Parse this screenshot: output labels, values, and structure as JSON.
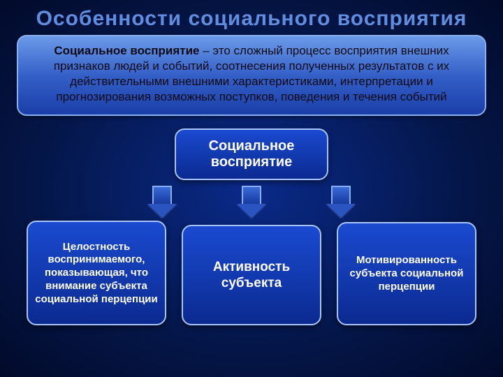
{
  "title": {
    "text": "Особенности социального восприятия",
    "fontsize": 30,
    "color": "#5f8de0"
  },
  "definition": {
    "bold_lead": "Социальное восприятие",
    "rest": " – это сложный процесс восприятия внешних признаков людей и событий, соотнесения полученных результатов с их действительными внешними характеристиками, интерпретации и прогнозирования возможных поступков, поведения и течения событий",
    "fontsize": 17,
    "text_color": "#0a0a14",
    "bg_gradient": [
      "#6a9ae8",
      "#3560c8",
      "#1a3ea8"
    ],
    "border_color": "#8ab0f0"
  },
  "center_node": {
    "label": "Социальное восприятие",
    "fontsize": 20,
    "text_color": "#ffffff",
    "bg_gradient": [
      "#1a4ad0",
      "#0b2a90"
    ],
    "border_color": "#a8c4f8"
  },
  "arrows": {
    "count": 3,
    "stem_color": "#2a54c0",
    "border_color": "#88b0f0"
  },
  "leaves": [
    {
      "label": "Целостность воспринимаемого, показывающая, что внимание субъекта социальной перцепции",
      "fontsize": 15
    },
    {
      "label": "Активность субъекта",
      "fontsize": 19
    },
    {
      "label": "Мотивированность субъекта социальной перцепции",
      "fontsize": 15
    }
  ],
  "leaf_style": {
    "text_color": "#ffffff",
    "bg_gradient": [
      "#1a4ad0",
      "#0b2a90"
    ],
    "border_color": "#a8c4f8"
  },
  "background": {
    "gradient": [
      "#0a2a8a",
      "#041648",
      "#020a2a"
    ]
  }
}
